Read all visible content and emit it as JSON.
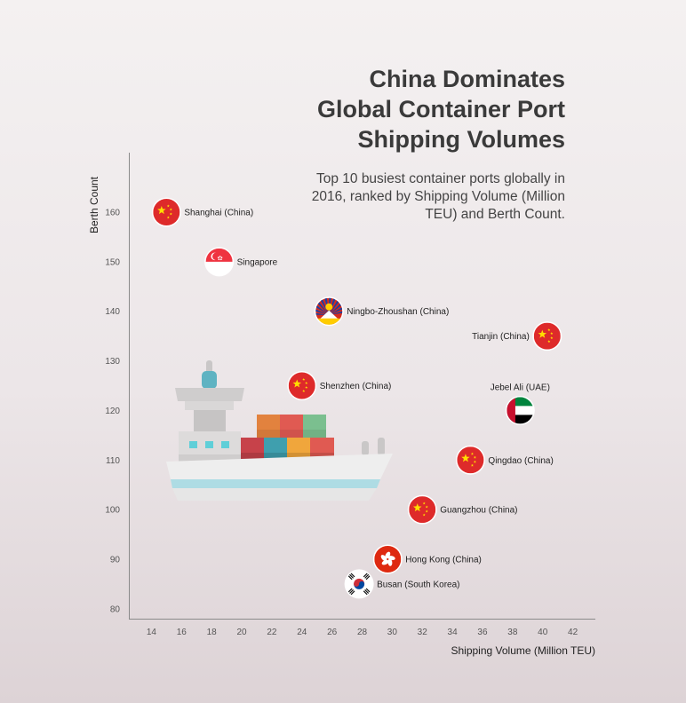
{
  "title_lines": [
    "China Dominates",
    "Global Container Port",
    "Shipping Volumes"
  ],
  "subtitle": "Top 10 busiest container ports globally in 2016, ranked by Shipping Volume (Million TEU) and Berth Count.",
  "chart_data": {
    "type": "scatter",
    "title": "China Dominates Global Container Port Shipping Volumes",
    "xlabel": "Shipping Volume (Million TEU)",
    "ylabel": "Berth Count",
    "xlim": [
      12.5,
      43.5
    ],
    "ylim": [
      78,
      172
    ],
    "xticks": [
      14,
      16,
      18,
      20,
      22,
      24,
      26,
      28,
      30,
      32,
      34,
      36,
      38,
      40,
      42
    ],
    "yticks": [
      80,
      90,
      100,
      110,
      120,
      130,
      140,
      150,
      160
    ],
    "grid": false,
    "points": [
      {
        "label": "Shanghai (China)",
        "x": 15,
        "y": 160,
        "flag": "china",
        "label_pos": "right"
      },
      {
        "label": "Singapore",
        "x": 18.5,
        "y": 150,
        "flag": "singapore",
        "label_pos": "right"
      },
      {
        "label": "Ningbo-Zhoushan (China)",
        "x": 25.8,
        "y": 140,
        "flag": "tibet",
        "label_pos": "right"
      },
      {
        "label": "Tianjin (China)",
        "x": 40.3,
        "y": 135,
        "flag": "china",
        "label_pos": "left"
      },
      {
        "label": "Shenzhen (China)",
        "x": 24,
        "y": 125,
        "flag": "china",
        "label_pos": "right"
      },
      {
        "label": "Jebel Ali (UAE)",
        "x": 38.5,
        "y": 120,
        "flag": "uae",
        "label_pos": "above"
      },
      {
        "label": "Qingdao (China)",
        "x": 35.2,
        "y": 110,
        "flag": "china",
        "label_pos": "right"
      },
      {
        "label": "Guangzhou (China)",
        "x": 32,
        "y": 100,
        "flag": "china",
        "label_pos": "right"
      },
      {
        "label": "Hong Kong (China)",
        "x": 29.7,
        "y": 90,
        "flag": "hongkong",
        "label_pos": "right"
      },
      {
        "label": "Busan (South Korea)",
        "x": 27.8,
        "y": 85,
        "flag": "korea",
        "label_pos": "right"
      }
    ]
  }
}
